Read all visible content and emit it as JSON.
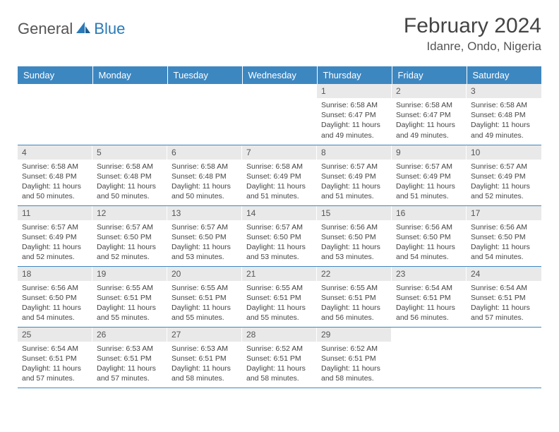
{
  "brand": {
    "part1": "General",
    "part2": "Blue"
  },
  "title": "February 2024",
  "location": "Idanre, Ondo, Nigeria",
  "colors": {
    "header_bg": "#3d87c1",
    "header_text": "#ffffff",
    "daynum_bg": "#e9e9e9",
    "rule": "#3d87c1",
    "body_text": "#444444",
    "logo_gray": "#555555",
    "logo_blue": "#2a7ab8"
  },
  "weekdays": [
    "Sunday",
    "Monday",
    "Tuesday",
    "Wednesday",
    "Thursday",
    "Friday",
    "Saturday"
  ],
  "weeks": [
    [
      null,
      null,
      null,
      null,
      {
        "n": "1",
        "sr": "6:58 AM",
        "ss": "6:47 PM",
        "dl": "11 hours and 49 minutes."
      },
      {
        "n": "2",
        "sr": "6:58 AM",
        "ss": "6:47 PM",
        "dl": "11 hours and 49 minutes."
      },
      {
        "n": "3",
        "sr": "6:58 AM",
        "ss": "6:48 PM",
        "dl": "11 hours and 49 minutes."
      }
    ],
    [
      {
        "n": "4",
        "sr": "6:58 AM",
        "ss": "6:48 PM",
        "dl": "11 hours and 50 minutes."
      },
      {
        "n": "5",
        "sr": "6:58 AM",
        "ss": "6:48 PM",
        "dl": "11 hours and 50 minutes."
      },
      {
        "n": "6",
        "sr": "6:58 AM",
        "ss": "6:48 PM",
        "dl": "11 hours and 50 minutes."
      },
      {
        "n": "7",
        "sr": "6:58 AM",
        "ss": "6:49 PM",
        "dl": "11 hours and 51 minutes."
      },
      {
        "n": "8",
        "sr": "6:57 AM",
        "ss": "6:49 PM",
        "dl": "11 hours and 51 minutes."
      },
      {
        "n": "9",
        "sr": "6:57 AM",
        "ss": "6:49 PM",
        "dl": "11 hours and 51 minutes."
      },
      {
        "n": "10",
        "sr": "6:57 AM",
        "ss": "6:49 PM",
        "dl": "11 hours and 52 minutes."
      }
    ],
    [
      {
        "n": "11",
        "sr": "6:57 AM",
        "ss": "6:49 PM",
        "dl": "11 hours and 52 minutes."
      },
      {
        "n": "12",
        "sr": "6:57 AM",
        "ss": "6:50 PM",
        "dl": "11 hours and 52 minutes."
      },
      {
        "n": "13",
        "sr": "6:57 AM",
        "ss": "6:50 PM",
        "dl": "11 hours and 53 minutes."
      },
      {
        "n": "14",
        "sr": "6:57 AM",
        "ss": "6:50 PM",
        "dl": "11 hours and 53 minutes."
      },
      {
        "n": "15",
        "sr": "6:56 AM",
        "ss": "6:50 PM",
        "dl": "11 hours and 53 minutes."
      },
      {
        "n": "16",
        "sr": "6:56 AM",
        "ss": "6:50 PM",
        "dl": "11 hours and 54 minutes."
      },
      {
        "n": "17",
        "sr": "6:56 AM",
        "ss": "6:50 PM",
        "dl": "11 hours and 54 minutes."
      }
    ],
    [
      {
        "n": "18",
        "sr": "6:56 AM",
        "ss": "6:50 PM",
        "dl": "11 hours and 54 minutes."
      },
      {
        "n": "19",
        "sr": "6:55 AM",
        "ss": "6:51 PM",
        "dl": "11 hours and 55 minutes."
      },
      {
        "n": "20",
        "sr": "6:55 AM",
        "ss": "6:51 PM",
        "dl": "11 hours and 55 minutes."
      },
      {
        "n": "21",
        "sr": "6:55 AM",
        "ss": "6:51 PM",
        "dl": "11 hours and 55 minutes."
      },
      {
        "n": "22",
        "sr": "6:55 AM",
        "ss": "6:51 PM",
        "dl": "11 hours and 56 minutes."
      },
      {
        "n": "23",
        "sr": "6:54 AM",
        "ss": "6:51 PM",
        "dl": "11 hours and 56 minutes."
      },
      {
        "n": "24",
        "sr": "6:54 AM",
        "ss": "6:51 PM",
        "dl": "11 hours and 57 minutes."
      }
    ],
    [
      {
        "n": "25",
        "sr": "6:54 AM",
        "ss": "6:51 PM",
        "dl": "11 hours and 57 minutes."
      },
      {
        "n": "26",
        "sr": "6:53 AM",
        "ss": "6:51 PM",
        "dl": "11 hours and 57 minutes."
      },
      {
        "n": "27",
        "sr": "6:53 AM",
        "ss": "6:51 PM",
        "dl": "11 hours and 58 minutes."
      },
      {
        "n": "28",
        "sr": "6:52 AM",
        "ss": "6:51 PM",
        "dl": "11 hours and 58 minutes."
      },
      {
        "n": "29",
        "sr": "6:52 AM",
        "ss": "6:51 PM",
        "dl": "11 hours and 58 minutes."
      },
      null,
      null
    ]
  ],
  "labels": {
    "sunrise": "Sunrise:",
    "sunset": "Sunset:",
    "daylight": "Daylight:"
  }
}
